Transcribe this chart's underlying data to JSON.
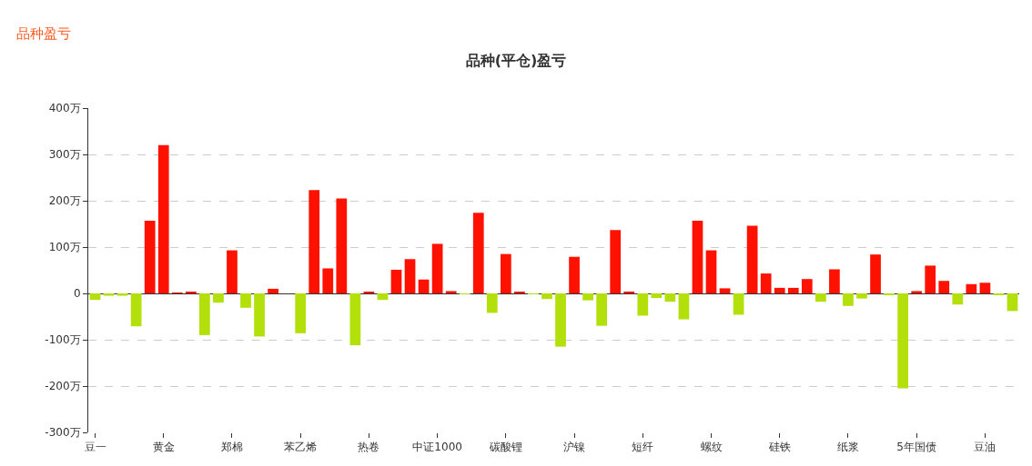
{
  "chart_data": {
    "type": "bar",
    "title": "品种(平仓)盈亏",
    "annotations": [
      "品种盈亏"
    ],
    "categories": [
      "豆一",
      null,
      null,
      null,
      null,
      "黄金",
      null,
      null,
      null,
      null,
      "郑棉",
      null,
      null,
      null,
      null,
      "苯乙烯",
      null,
      null,
      null,
      null,
      "热卷",
      null,
      null,
      null,
      null,
      "中证1000",
      null,
      null,
      null,
      null,
      "碳酸锂",
      null,
      null,
      null,
      null,
      "沪镍",
      null,
      null,
      null,
      null,
      "短纤",
      null,
      null,
      null,
      null,
      "螺纹",
      null,
      null,
      null,
      null,
      "硅铁",
      null,
      null,
      null,
      null,
      "纸浆",
      null,
      null,
      null,
      null,
      "5年国债",
      null,
      null,
      null,
      null,
      "豆油",
      null,
      null
    ],
    "values": [
      -14,
      -5,
      -5,
      -71,
      157,
      320,
      1,
      3,
      -90,
      -20,
      93,
      -31,
      -93,
      10,
      0,
      -86,
      223,
      54,
      205,
      -112,
      2,
      -14,
      51,
      74,
      30,
      107,
      5,
      -1,
      174,
      -42,
      85,
      3,
      -1,
      -12,
      -115,
      79,
      -15,
      -70,
      137,
      4,
      -48,
      -10,
      -18,
      -56,
      157,
      93,
      11,
      -46,
      146,
      43,
      12,
      12,
      31,
      -18,
      52,
      -27,
      -11,
      84,
      -2,
      -205,
      5,
      60,
      27,
      -24,
      20,
      23,
      -3,
      -38
    ],
    "colors": [
      "#b3e00a",
      "#b3e00a",
      "#b3e00a",
      "#b3e00a",
      "#ff1100",
      "#ff1100",
      "#ff1100",
      "#ff1100",
      "#b3e00a",
      "#b3e00a",
      "#ff1100",
      "#b3e00a",
      "#b3e00a",
      "#ff1100",
      "#ff1100",
      "#b3e00a",
      "#ff1100",
      "#ff1100",
      "#ff1100",
      "#b3e00a",
      "#ff1100",
      "#b3e00a",
      "#ff1100",
      "#ff1100",
      "#ff1100",
      "#ff1100",
      "#ff1100",
      "#b3e00a",
      "#ff1100",
      "#b3e00a",
      "#ff1100",
      "#ff1100",
      "#b3e00a",
      "#b3e00a",
      "#b3e00a",
      "#ff1100",
      "#b3e00a",
      "#b3e00a",
      "#ff1100",
      "#ff1100",
      "#b3e00a",
      "#b3e00a",
      "#b3e00a",
      "#b3e00a",
      "#ff1100",
      "#ff1100",
      "#ff1100",
      "#b3e00a",
      "#ff1100",
      "#ff1100",
      "#ff1100",
      "#ff1100",
      "#ff1100",
      "#b3e00a",
      "#ff1100",
      "#b3e00a",
      "#b3e00a",
      "#ff1100",
      "#b3e00a",
      "#b3e00a",
      "#ff1100",
      "#ff1100",
      "#ff1100",
      "#b3e00a",
      "#ff1100",
      "#ff1100",
      "#b3e00a",
      "#b3e00a"
    ],
    "ylim": [
      -300,
      400
    ],
    "yticks": [
      {
        "value": -300,
        "label": "-300万"
      },
      {
        "value": -200,
        "label": "-200万"
      },
      {
        "value": -100,
        "label": "-100万"
      },
      0,
      {
        "value": 100,
        "label": "100万"
      },
      {
        "value": 200,
        "label": "200万"
      },
      {
        "value": 300,
        "label": "300万"
      },
      {
        "value": 400,
        "label": "400万"
      }
    ],
    "grid": "y"
  }
}
